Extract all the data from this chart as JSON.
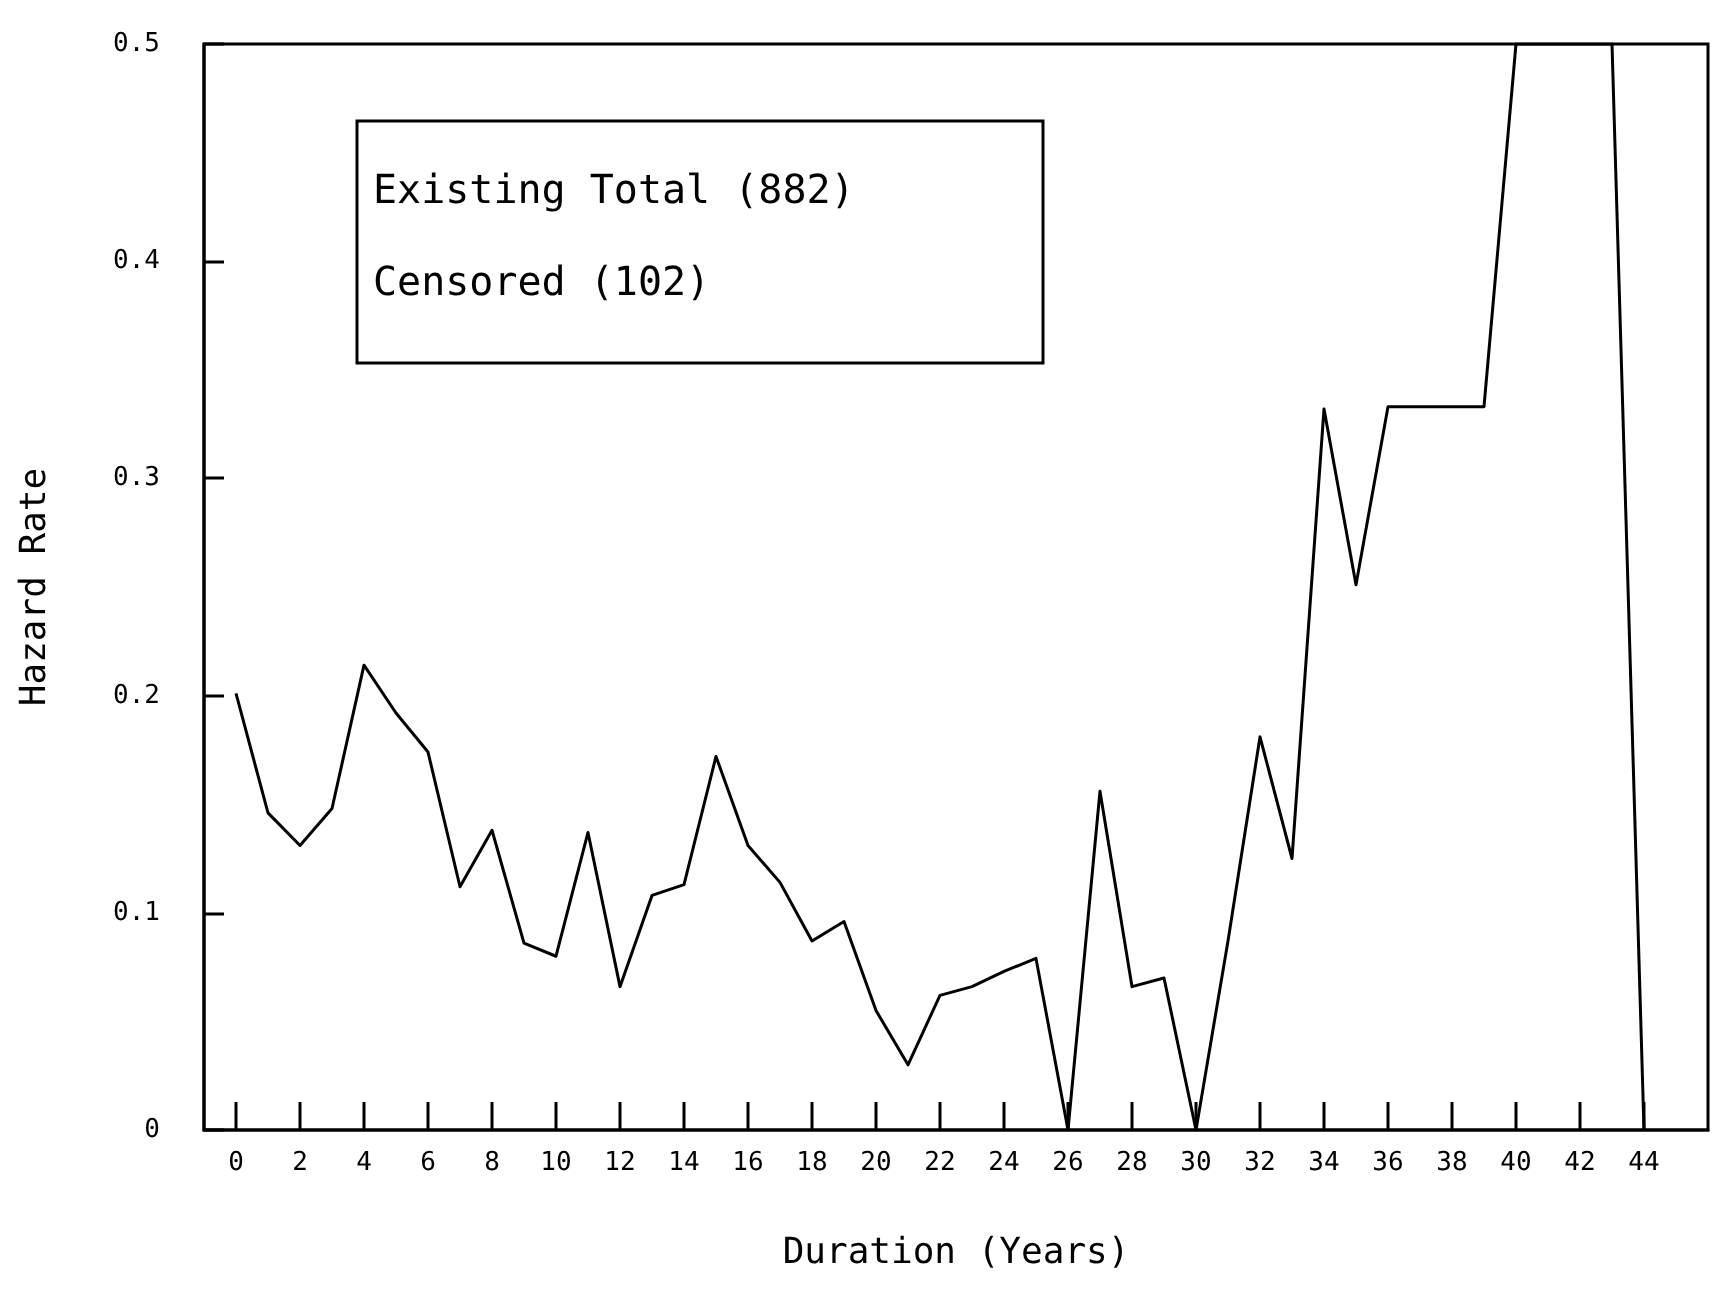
{
  "chart_data": {
    "type": "line",
    "xlabel": "Duration (Years)",
    "ylabel": "Hazard Rate",
    "annotations": [
      "Existing Total (882)",
      "Censored (102)"
    ],
    "x": [
      0,
      1,
      2,
      3,
      4,
      5,
      6,
      7,
      8,
      9,
      10,
      11,
      12,
      13,
      14,
      15,
      16,
      17,
      18,
      19,
      20,
      21,
      22,
      23,
      24,
      25,
      26,
      27,
      28,
      29,
      30,
      31,
      32,
      33,
      34,
      35,
      36,
      37,
      38,
      39,
      40,
      41,
      42,
      43,
      44
    ],
    "series": [
      {
        "color": "#000000",
        "values": [
          0.201,
          0.146,
          0.131,
          0.148,
          0.214,
          0.192,
          0.174,
          0.112,
          0.138,
          0.086,
          0.08,
          0.137,
          0.066,
          0.108,
          0.113,
          0.172,
          0.131,
          0.114,
          0.087,
          0.096,
          0.055,
          0.03,
          0.062,
          0.066,
          0.073,
          0.079,
          0,
          0.156,
          0.066,
          0.07,
          0,
          0.087,
          0.181,
          0.125,
          0.332,
          0.251,
          0.333,
          0.333,
          0.333,
          0.333,
          0.5,
          0.5,
          0.5,
          0.5,
          0
        ]
      }
    ],
    "xlim": [
      -1,
      46
    ],
    "xticks": [
      0,
      2,
      4,
      6,
      8,
      10,
      12,
      14,
      16,
      18,
      20,
      22,
      24,
      26,
      28,
      30,
      32,
      34,
      36,
      38,
      40,
      42,
      44
    ],
    "ylim": [
      0,
      0.5
    ],
    "yticks": [
      0,
      0.1,
      0.2,
      0.3,
      0.4,
      0.5
    ],
    "grid": false,
    "marker": "none"
  }
}
